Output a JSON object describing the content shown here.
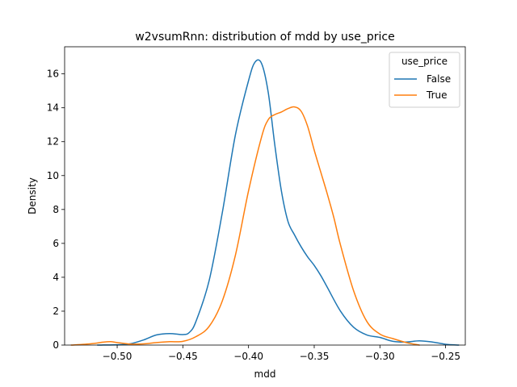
{
  "chart_data": {
    "type": "line",
    "title": "w2vsumRnn: distribution of mdd by use_price",
    "xlabel": "mdd",
    "ylabel": "Density",
    "xlim": [
      -0.54,
      -0.235
    ],
    "ylim": [
      0,
      17.6
    ],
    "xticks": [
      -0.5,
      -0.45,
      -0.4,
      -0.35,
      -0.3,
      -0.25
    ],
    "xtick_labels": [
      "−0.50",
      "−0.45",
      "−0.40",
      "−0.35",
      "−0.30",
      "−0.25"
    ],
    "yticks": [
      0,
      2,
      4,
      6,
      8,
      10,
      12,
      14,
      16
    ],
    "yticks_labels": [
      "0",
      "2",
      "4",
      "6",
      "8",
      "10",
      "12",
      "14",
      "16"
    ],
    "grid": false,
    "legend": {
      "title": "use_price",
      "placement": "top-right",
      "entries": [
        "False",
        "True"
      ]
    },
    "series": [
      {
        "name": "False",
        "color": "#1f77b4",
        "x": [
          -0.515,
          -0.5,
          -0.49,
          -0.48,
          -0.47,
          -0.46,
          -0.45,
          -0.445,
          -0.44,
          -0.43,
          -0.42,
          -0.41,
          -0.4,
          -0.395,
          -0.39,
          -0.385,
          -0.38,
          -0.375,
          -0.37,
          -0.365,
          -0.36,
          -0.355,
          -0.35,
          -0.345,
          -0.34,
          -0.33,
          -0.32,
          -0.31,
          -0.3,
          -0.29,
          -0.28,
          -0.27,
          -0.26,
          -0.25,
          -0.24
        ],
        "y": [
          0.0,
          0.02,
          0.08,
          0.3,
          0.6,
          0.68,
          0.62,
          0.75,
          1.4,
          3.8,
          7.8,
          12.4,
          15.6,
          16.7,
          16.6,
          14.9,
          11.8,
          9.1,
          7.3,
          6.5,
          5.8,
          5.2,
          4.7,
          4.1,
          3.4,
          2.0,
          1.05,
          0.6,
          0.45,
          0.22,
          0.18,
          0.25,
          0.18,
          0.05,
          0.0
        ]
      },
      {
        "name": "True",
        "color": "#ff7f0e",
        "x": [
          -0.535,
          -0.52,
          -0.51,
          -0.505,
          -0.5,
          -0.49,
          -0.48,
          -0.47,
          -0.46,
          -0.45,
          -0.44,
          -0.43,
          -0.42,
          -0.41,
          -0.4,
          -0.39,
          -0.385,
          -0.38,
          -0.375,
          -0.37,
          -0.365,
          -0.36,
          -0.355,
          -0.35,
          -0.345,
          -0.34,
          -0.335,
          -0.33,
          -0.32,
          -0.31,
          -0.3,
          -0.29,
          -0.28,
          -0.27
        ],
        "y": [
          0.0,
          0.08,
          0.18,
          0.2,
          0.15,
          0.06,
          0.07,
          0.15,
          0.2,
          0.22,
          0.5,
          1.1,
          2.6,
          5.3,
          9.1,
          12.3,
          13.3,
          13.6,
          13.75,
          13.95,
          14.05,
          13.8,
          12.9,
          11.5,
          10.2,
          8.9,
          7.5,
          5.9,
          3.2,
          1.4,
          0.65,
          0.38,
          0.15,
          0.0
        ]
      }
    ]
  }
}
